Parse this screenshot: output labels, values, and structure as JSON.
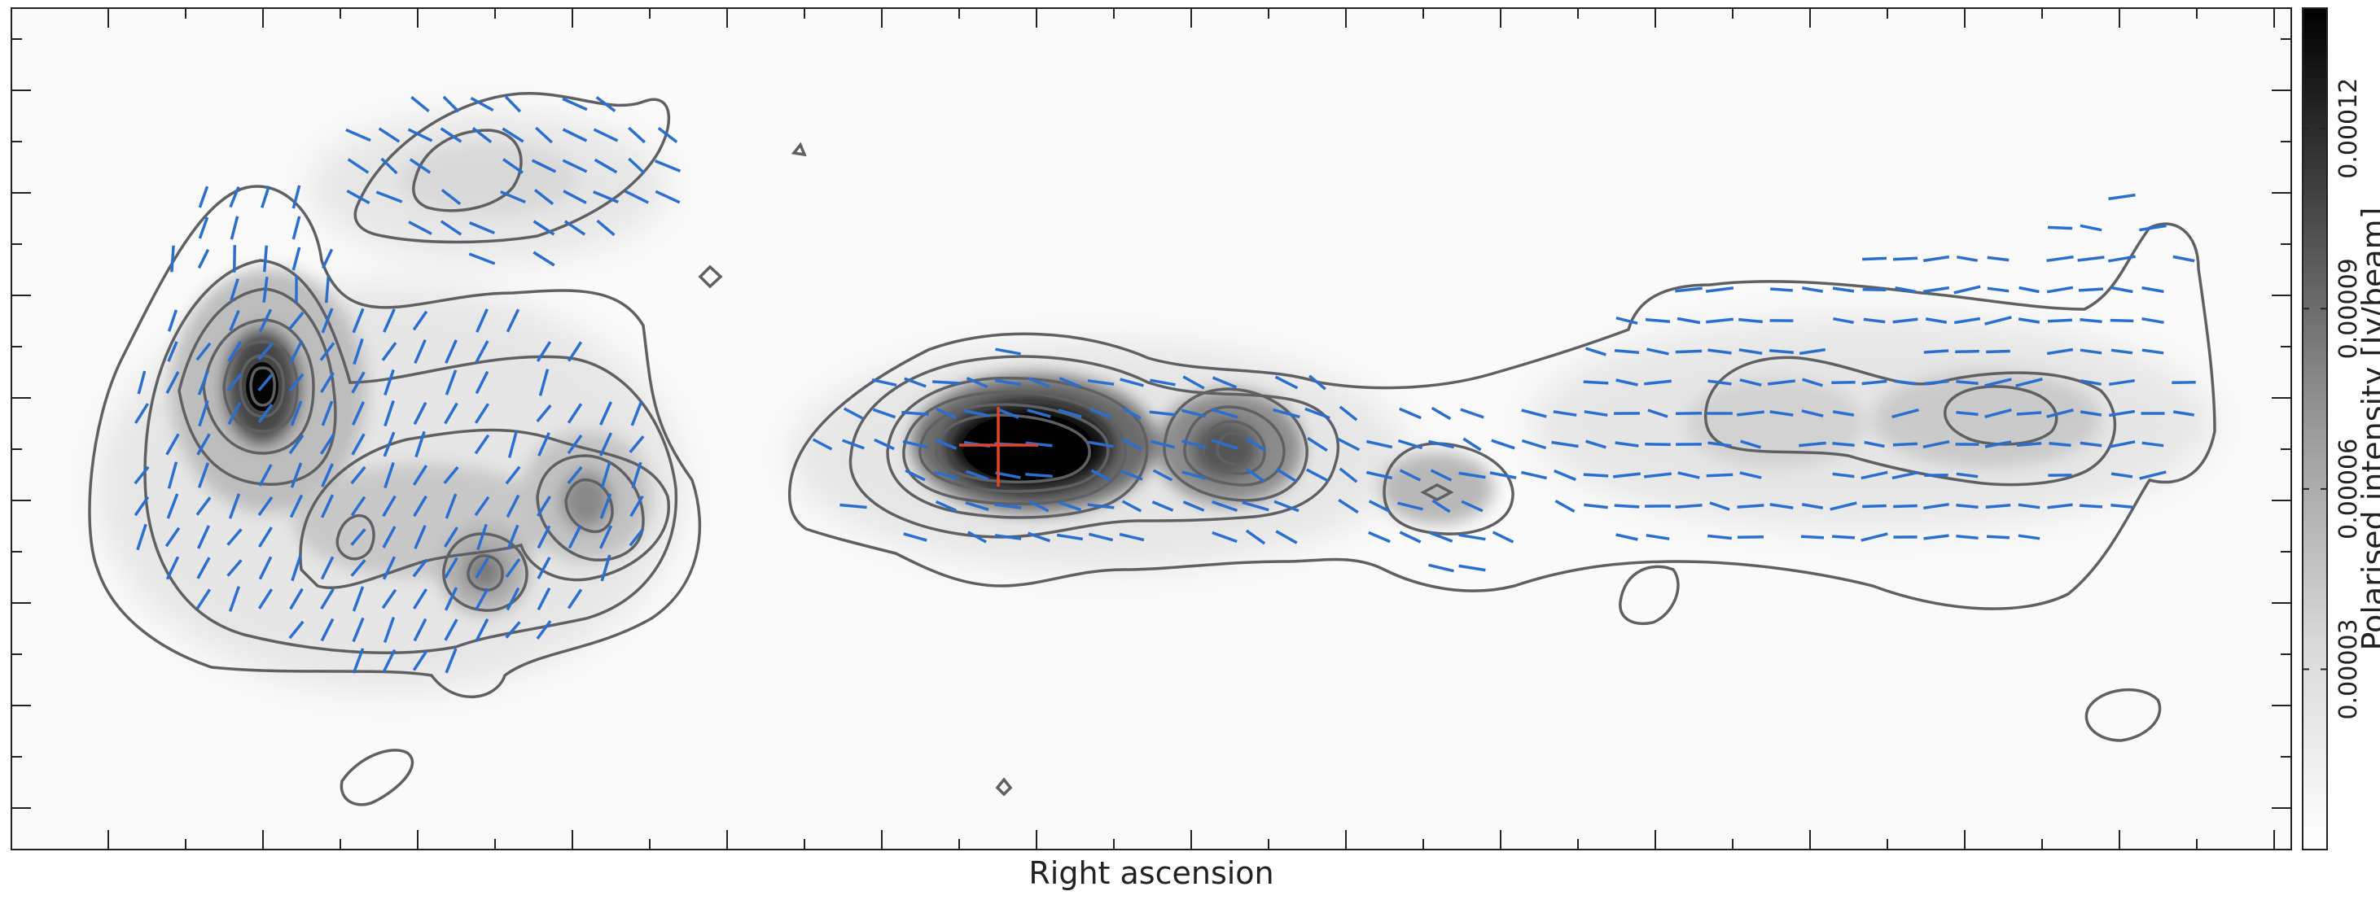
{
  "chart_data": {
    "type": "heatmap",
    "title": "",
    "xlabel": "Right ascension",
    "ylabel": "",
    "colormap": "grayscale (white to black)",
    "colorbar": {
      "label": "Polarised intensity [Jy/beam]",
      "range": [
        0.0,
        0.00014
      ],
      "ticks": [
        "0.00003",
        "0.00006",
        "0.00009",
        "0.00012"
      ],
      "tick_values": [
        3e-05,
        6e-05,
        9e-05,
        0.00012
      ],
      "position": "right"
    },
    "overlays": {
      "contours": {
        "color": "#5f6063"
      },
      "polarisation_vectors": {
        "color": "#2a6fd0"
      },
      "core_marker": {
        "shape": "cross",
        "color": "#e0452c"
      }
    },
    "grid": false,
    "axis_tick_labels_shown": false
  }
}
